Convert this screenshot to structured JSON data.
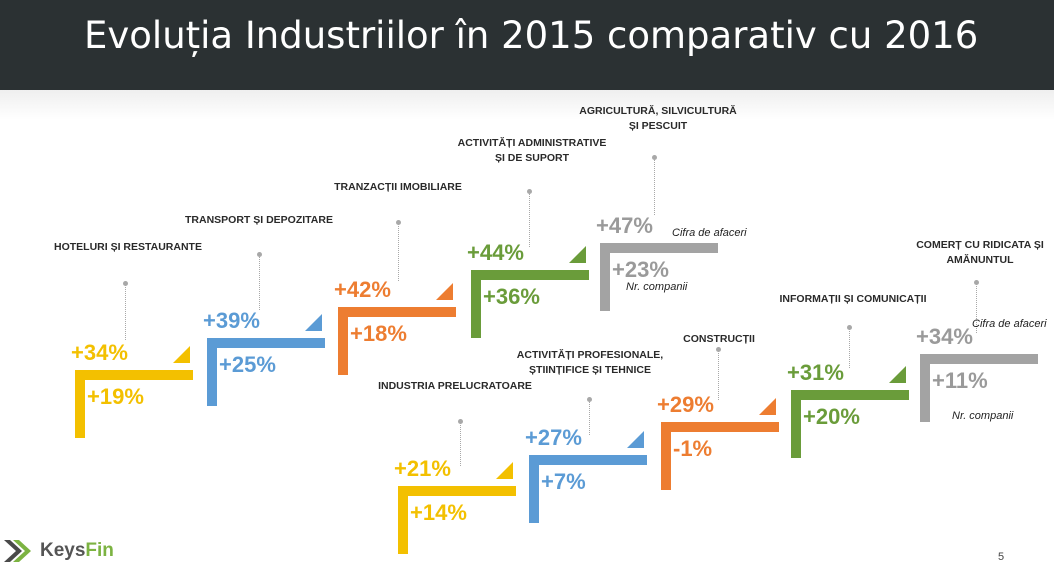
{
  "slide": {
    "title": "Evoluția Industriilor în 2015 comparativ cu 2016",
    "page_number": "5",
    "logo_text_1": "Keys",
    "logo_text_2": "Fin"
  },
  "colors": {
    "yellow": "#f3c000",
    "blue": "#5b9bd5",
    "orange": "#ed7d31",
    "green": "#6a9c3a",
    "gray": "#a3a3a3",
    "title_bg": "#2b3133"
  },
  "industries": [
    {
      "label": "HOTELURI ȘI RESTAURANTE",
      "turnover": "+34%",
      "companies": "+19%",
      "color": "yellow"
    },
    {
      "label": "TRANSPORT ȘI DEPOZITARE",
      "turnover": "+39%",
      "companies": "+25%",
      "color": "blue"
    },
    {
      "label": "TRANZACȚII IMOBILIARE",
      "turnover": "+42%",
      "companies": "+18%",
      "color": "orange"
    },
    {
      "label": "ACTIVITĂȚI ADMINISTRATIVE ȘI DE SUPORT",
      "turnover": "+44%",
      "companies": "+36%",
      "color": "green"
    },
    {
      "label": "AGRICULTURĂ, SILVICULTURĂ ȘI PESCUIT",
      "turnover": "+47%",
      "companies": "+23%",
      "color": "gray",
      "turnover_note": "Cifra de afaceri",
      "companies_note": "Nr. companii"
    },
    {
      "label": "INDUSTRIA PRELUCRATOARE",
      "turnover": "+21%",
      "companies": "+14%",
      "color": "yellow"
    },
    {
      "label": "ACTIVITĂȚI PROFESIONALE, ȘTIINȚIFICE ȘI TEHNICE",
      "turnover": "+27%",
      "companies": "+7%",
      "color": "blue"
    },
    {
      "label": "CONSTRUCȚII",
      "turnover": "+29%",
      "companies": "-1%",
      "color": "orange"
    },
    {
      "label": "INFORMAȚII ȘI COMUNICAȚII",
      "turnover": "+31%",
      "companies": "+20%",
      "color": "green"
    },
    {
      "label": "COMERȚ CU RIDICATA ȘI AMĂNUNTUL",
      "turnover": "+34%",
      "companies": "+11%",
      "color": "gray",
      "turnover_note": "Cifra de afaceri",
      "companies_note": "Nr. companii"
    }
  ]
}
